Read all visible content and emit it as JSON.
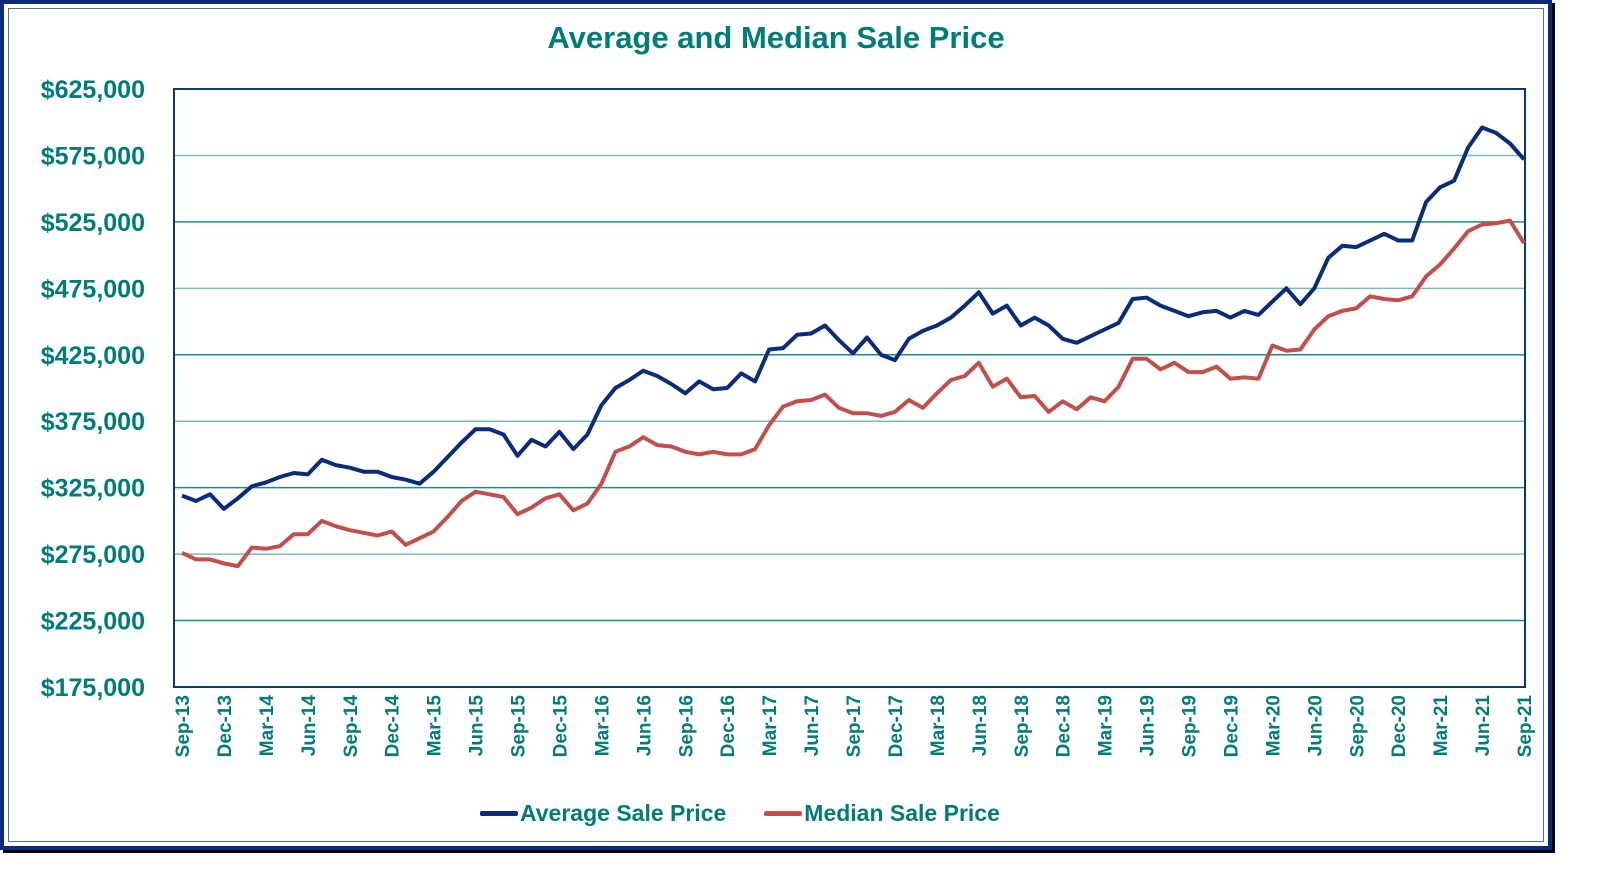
{
  "chart_data": {
    "type": "line",
    "title": "Average and Median Sale Price",
    "xlabel": "",
    "ylabel": "",
    "ylim": [
      175000,
      625000
    ],
    "yticks": [
      175000,
      225000,
      275000,
      325000,
      375000,
      425000,
      475000,
      525000,
      575000,
      625000
    ],
    "ytick_labels": [
      "$175,000",
      "$225,000",
      "$275,000",
      "$325,000",
      "$375,000",
      "$425,000",
      "$475,000",
      "$525,000",
      "$575,000",
      "$625,000"
    ],
    "xtick_labels": [
      "Sep-13",
      "Dec-13",
      "Mar-14",
      "Jun-14",
      "Sep-14",
      "Dec-14",
      "Mar-15",
      "Jun-15",
      "Sep-15",
      "Dec-15",
      "Mar-16",
      "Jun-16",
      "Sep-16",
      "Dec-16",
      "Mar-17",
      "Jun-17",
      "Sep-17",
      "Dec-17",
      "Mar-18",
      "Jun-18",
      "Sep-18",
      "Dec-18",
      "Mar-19",
      "Jun-19",
      "Sep-19",
      "Dec-19",
      "Mar-20",
      "Jun-20",
      "Sep-20",
      "Dec-20",
      "Mar-21",
      "Jun-21",
      "Sep-21"
    ],
    "x_start": "Sep-13",
    "x_end": "Sep-21",
    "x_interval": "monthly",
    "grid": true,
    "legend_position": "bottom",
    "series": [
      {
        "name": "Average Sale Price",
        "color": "#0a2a7a",
        "values": [
          319000,
          315000,
          320000,
          309000,
          317000,
          326000,
          329000,
          333000,
          336000,
          335000,
          346000,
          342000,
          340000,
          337000,
          337000,
          333000,
          331000,
          328000,
          337000,
          348000,
          359000,
          369000,
          369000,
          365000,
          349000,
          361000,
          356000,
          367000,
          354000,
          365000,
          387000,
          400000,
          406000,
          413000,
          409000,
          403000,
          396000,
          405000,
          399000,
          400000,
          411000,
          405000,
          429000,
          430000,
          440000,
          441000,
          447000,
          436000,
          426000,
          438000,
          425000,
          421000,
          437000,
          443000,
          447000,
          453000,
          462000,
          472000,
          456000,
          462000,
          447000,
          453000,
          447000,
          437000,
          434000,
          439000,
          444000,
          449000,
          467000,
          468000,
          462000,
          458000,
          454000,
          457000,
          458000,
          453000,
          458000,
          455000,
          465000,
          475000,
          463000,
          475000,
          498000,
          507000,
          506000,
          511000,
          516000,
          511000,
          511000,
          540000,
          551000,
          556000,
          581000,
          596000,
          592000,
          584000,
          572000
        ]
      },
      {
        "name": "Median Sale Price",
        "color": "#c0504d",
        "values": [
          276000,
          271000,
          271000,
          268000,
          266000,
          280000,
          279000,
          281000,
          290000,
          290000,
          300000,
          296000,
          293000,
          291000,
          289000,
          292000,
          282000,
          287000,
          292000,
          303000,
          315000,
          322000,
          320000,
          318000,
          305000,
          310000,
          317000,
          320000,
          308000,
          313000,
          328000,
          352000,
          356000,
          363000,
          357000,
          356000,
          352000,
          350000,
          352000,
          350000,
          350000,
          354000,
          372000,
          386000,
          390000,
          391000,
          395000,
          385000,
          381000,
          381000,
          379000,
          382000,
          391000,
          385000,
          396000,
          406000,
          409000,
          419000,
          401000,
          407000,
          393000,
          394000,
          382000,
          390000,
          384000,
          393000,
          390000,
          401000,
          422000,
          422000,
          414000,
          419000,
          412000,
          412000,
          416000,
          407000,
          408000,
          407000,
          432000,
          428000,
          429000,
          444000,
          454000,
          458000,
          460000,
          469000,
          467000,
          466000,
          469000,
          484000,
          493000,
          505000,
          518000,
          523000,
          524000,
          526000,
          509000
        ]
      }
    ]
  }
}
